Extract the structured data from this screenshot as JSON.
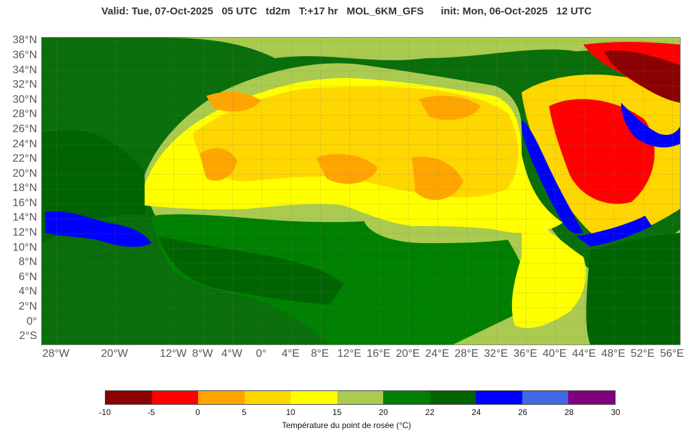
{
  "header": {
    "title": "Valid: Tue, 07-Oct-2025   05 UTC   td2m   T:+17 hr   MOL_6KM_GFS      init: Mon, 06-Oct-2025   12 UTC"
  },
  "map": {
    "lon_range": [
      -30,
      57
    ],
    "lat_range": [
      -3,
      38.5
    ],
    "lat_labels": [
      "38°N",
      "36°N",
      "34°N",
      "32°N",
      "30°N",
      "28°N",
      "26°N",
      "24°N",
      "22°N",
      "20°N",
      "18°N",
      "16°N",
      "14°N",
      "12°N",
      "10°N",
      "8°N",
      "6°N",
      "4°N",
      "2°N",
      "0°",
      "2°S"
    ],
    "lat_values": [
      38,
      36,
      34,
      32,
      30,
      28,
      26,
      24,
      22,
      20,
      18,
      16,
      14,
      12,
      10,
      8,
      6,
      4,
      2,
      0,
      -2
    ],
    "lon_labels": [
      "28°W",
      "20°W",
      "12°W",
      "8°W",
      "4°W",
      "0°",
      "4°E",
      "8°E",
      "12°E",
      "16°E",
      "20°E",
      "24°E",
      "28°E",
      "32°E",
      "36°E",
      "40°E",
      "44°E",
      "48°E",
      "52°E",
      "56°E"
    ],
    "lon_values": [
      -28,
      -20,
      -12,
      -8,
      -4,
      0,
      4,
      8,
      12,
      16,
      20,
      24,
      28,
      32,
      36,
      40,
      44,
      48,
      52,
      56
    ],
    "ocean_color": "#0a6e0a",
    "land_base_color": "#aacb50"
  },
  "colorbar": {
    "colors": [
      "#8b0000",
      "#ff0000",
      "#ffa500",
      "#ffd700",
      "#ffff00",
      "#aacb50",
      "#008000",
      "#006400",
      "#0000ff",
      "#4169e1",
      "#800080"
    ],
    "ticks": [
      "-10",
      "-5",
      "0",
      "5",
      "10",
      "15",
      "20",
      "22",
      "24",
      "26",
      "28",
      "30"
    ],
    "label": "Température du point de rosée (°C)"
  }
}
